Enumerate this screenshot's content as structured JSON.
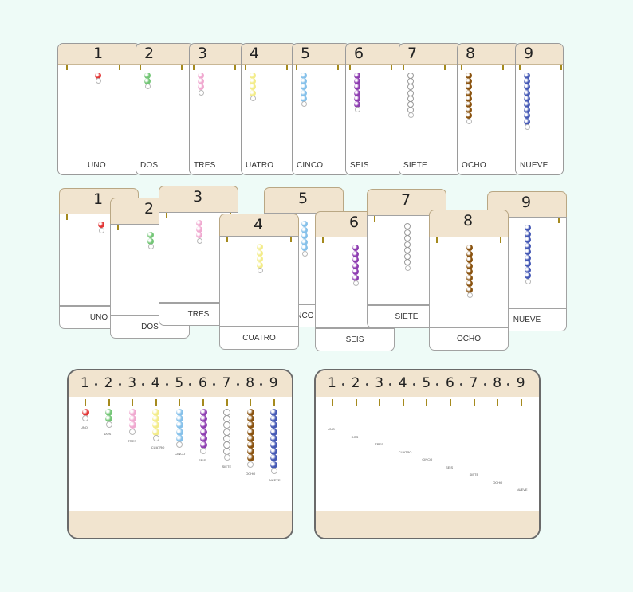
{
  "numbers": [
    "1",
    "2",
    "3",
    "4",
    "5",
    "6",
    "7",
    "8",
    "9"
  ],
  "words": [
    "UNO",
    "DOS",
    "TRES",
    "CUATRO",
    "CINCO",
    "SEIS",
    "SIETE",
    "OCHO",
    "NUEVE"
  ],
  "row1_words": [
    "UNO",
    "DOS",
    "TRES",
    "UATRO",
    "CINCO",
    "SEIS",
    "SIETE",
    "OCHO",
    "NUEVE"
  ],
  "row2_words": [
    "UNO",
    "DOS",
    "TRES",
    "CUATRO",
    "INCO",
    "SEIS",
    "SIETE",
    "OCHO",
    "NUEVE"
  ],
  "bead_colors": [
    "#e23636",
    "#74c677",
    "#f0a9d0",
    "#f3ec8a",
    "#86c1ea",
    "#8e3db1",
    "#ffffff",
    "#8a5310",
    "#4559b5"
  ],
  "background": "#eefbf7",
  "header_color": "#f1e4cf"
}
